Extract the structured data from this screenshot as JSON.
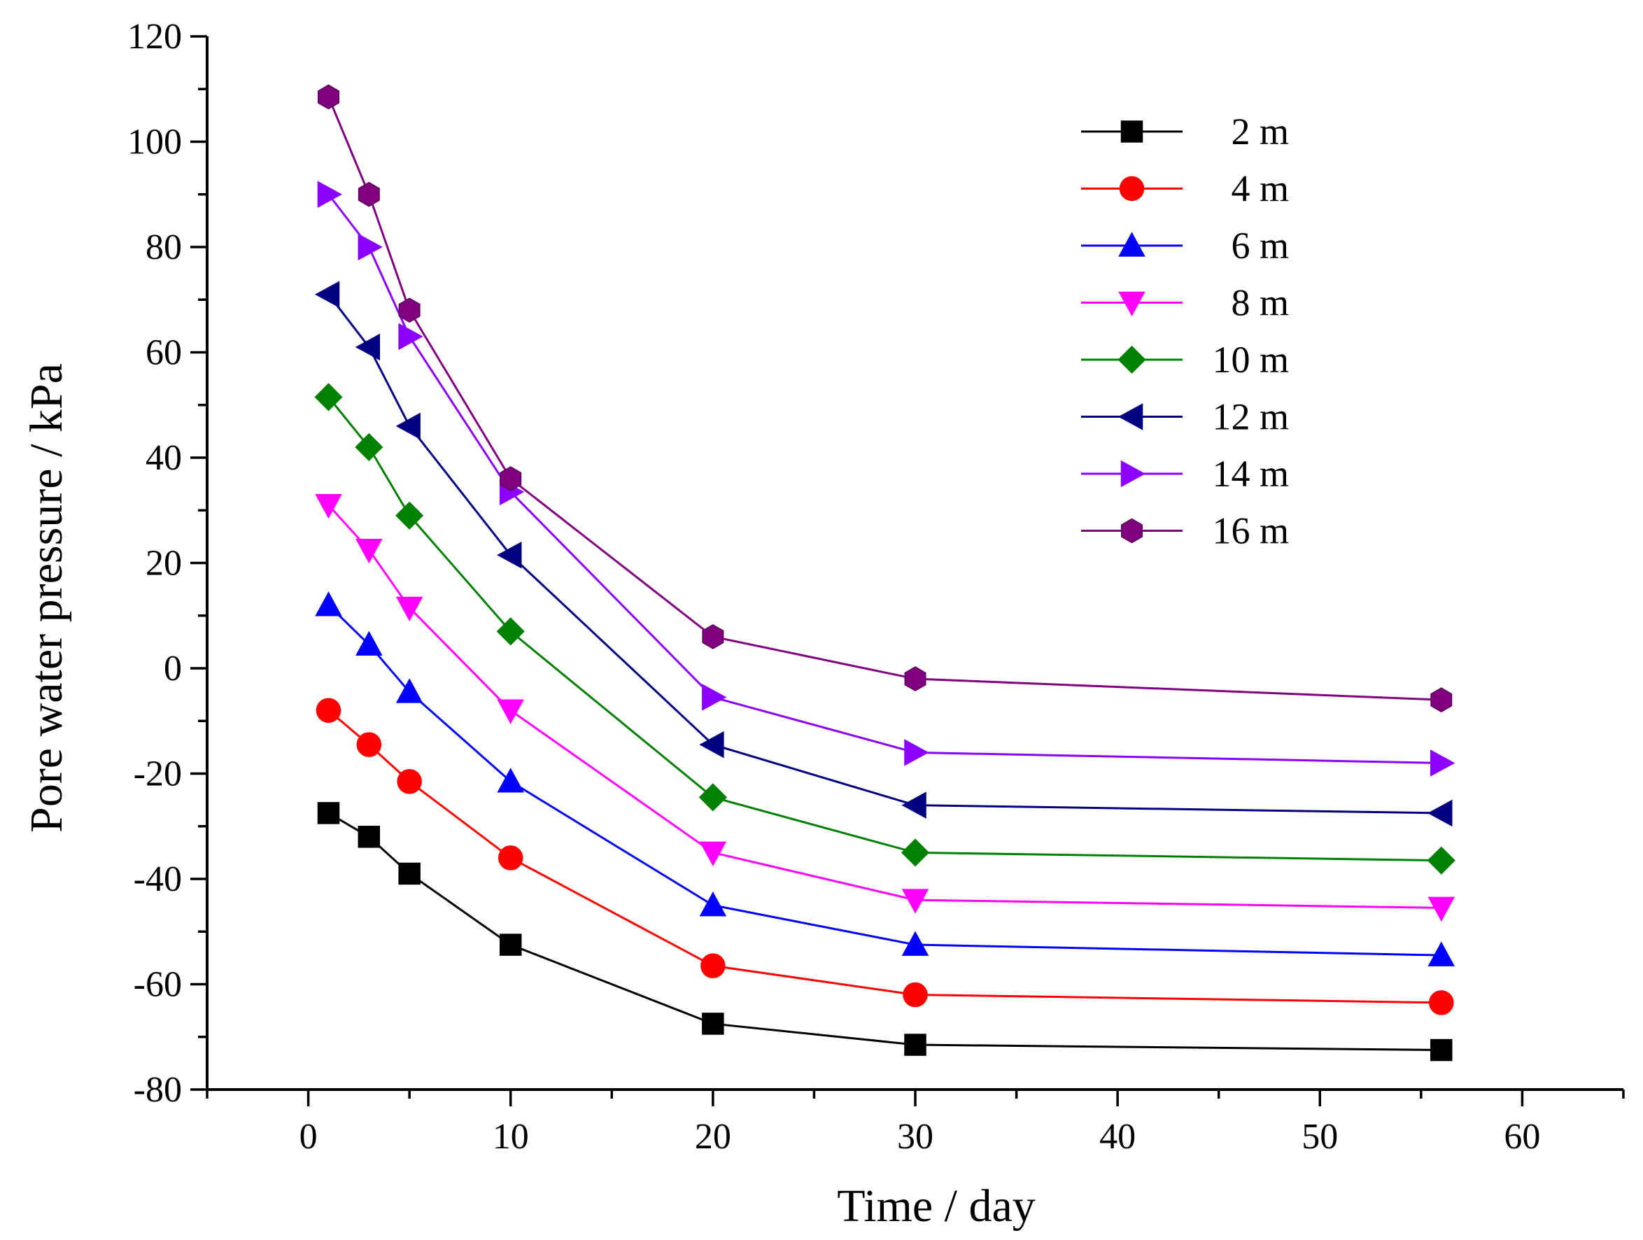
{
  "chart_data": {
    "type": "line",
    "title": "",
    "xlabel": "Time / day",
    "ylabel": "Pore water pressure / kPa",
    "xlim": [
      -5,
      65
    ],
    "ylim": [
      -80,
      120
    ],
    "xticks": [
      0,
      10,
      20,
      30,
      40,
      50,
      60
    ],
    "yticks": [
      -80,
      -60,
      -40,
      -20,
      0,
      20,
      40,
      60,
      80,
      100,
      120
    ],
    "legend_position": "top-right",
    "x": [
      1,
      3,
      5,
      10,
      20,
      30,
      56
    ],
    "series": [
      {
        "name": "2 m",
        "color": "#000000",
        "marker": "square",
        "values": [
          -27.5,
          -32,
          -39,
          -52.5,
          -67.5,
          -71.5,
          -72.5
        ]
      },
      {
        "name": "4 m",
        "color": "#ff0000",
        "marker": "circle",
        "values": [
          -8,
          -14.5,
          -21.5,
          -36,
          -56.5,
          -62,
          -63.5
        ]
      },
      {
        "name": "6 m",
        "color": "#0000ff",
        "marker": "triangle-up",
        "values": [
          12,
          4.5,
          -4.5,
          -21.5,
          -45,
          -52.5,
          -54.5
        ]
      },
      {
        "name": "8 m",
        "color": "#ff00ff",
        "marker": "triangle-down",
        "values": [
          31,
          22.5,
          11.5,
          -8,
          -35,
          -44,
          -45.5
        ]
      },
      {
        "name": "10 m",
        "color": "#008000",
        "marker": "diamond",
        "values": [
          51.5,
          42,
          29,
          7,
          -24.5,
          -35,
          -36.5
        ]
      },
      {
        "name": "12 m",
        "color": "#000080",
        "marker": "triangle-left",
        "values": [
          71,
          61,
          46,
          21.5,
          -14.5,
          -26,
          -27.5
        ]
      },
      {
        "name": "14 m",
        "color": "#8b00ff",
        "marker": "triangle-right",
        "values": [
          90,
          80,
          63,
          33.5,
          -5.5,
          -16,
          -18
        ]
      },
      {
        "name": "16 m",
        "color": "#800080",
        "marker": "hexagon",
        "values": [
          108.5,
          90,
          68,
          36,
          6,
          -2,
          -6
        ]
      }
    ]
  }
}
